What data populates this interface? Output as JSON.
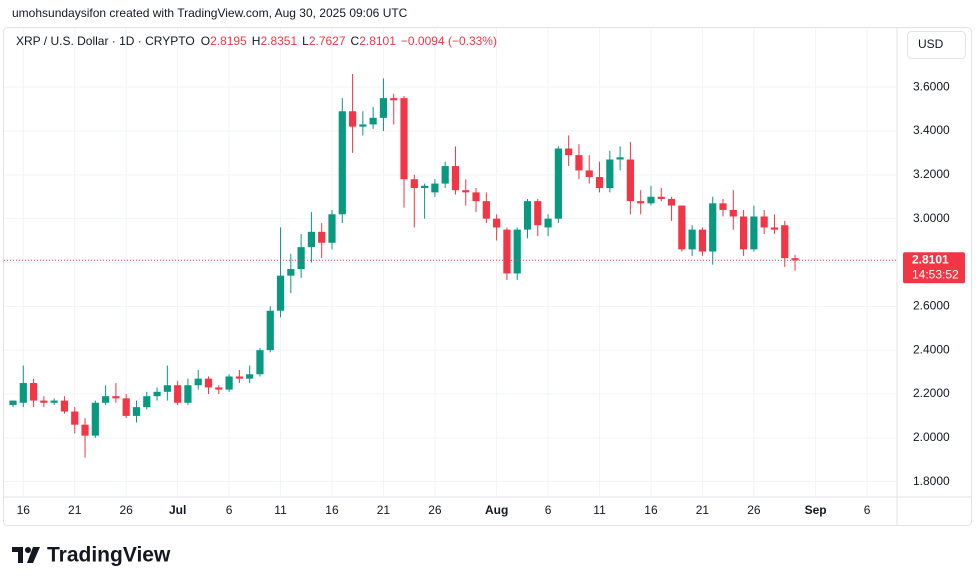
{
  "header": {
    "attribution": "umohsundaysifon created with TradingView.com, Aug 30, 2025 09:06 UTC"
  },
  "chart_data": {
    "type": "candlestick",
    "symbol": "XRP / U.S. Dollar · 1D · CRYPTO",
    "legend_labels": [
      "O",
      "H",
      "L",
      "C"
    ],
    "change_label": "−0.0094 (−0.33%)",
    "currency": "USD",
    "countdown": "14:53:52",
    "up_color": "#089981",
    "down_color": "#f23645",
    "grid": true,
    "categories": [
      null,
      "16",
      null,
      null,
      null,
      null,
      "21",
      null,
      null,
      null,
      null,
      "26",
      null,
      null,
      null,
      null,
      "Jul",
      null,
      null,
      null,
      null,
      "6",
      null,
      null,
      null,
      null,
      "11",
      null,
      null,
      null,
      null,
      "16",
      null,
      null,
      null,
      null,
      "21",
      null,
      null,
      null,
      null,
      "26",
      null,
      null,
      null,
      null,
      null,
      "Aug",
      null,
      null,
      null,
      null,
      "6",
      null,
      null,
      null,
      null,
      "11",
      null,
      null,
      null,
      null,
      "16",
      null,
      null,
      null,
      null,
      "21",
      null,
      null,
      null,
      null,
      "26",
      null,
      null,
      null,
      null,
      null,
      "Sep",
      null,
      null,
      null,
      null,
      "6",
      null
    ],
    "open": [
      2.15,
      2.16,
      2.25,
      2.17,
      2.16,
      2.17,
      2.12,
      2.06,
      2.01,
      2.16,
      2.19,
      2.18,
      2.1,
      2.14,
      2.19,
      2.21,
      2.24,
      2.16,
      2.24,
      2.27,
      2.23,
      2.22,
      2.28,
      2.27,
      2.29,
      2.4,
      2.58,
      2.74,
      2.77,
      2.87,
      2.94,
      2.89,
      3.02,
      3.49,
      3.42,
      3.43,
      3.46,
      3.55,
      3.55,
      3.18,
      3.14,
      3.12,
      3.16,
      3.24,
      3.13,
      3.12,
      3.08,
      3.0,
      2.95,
      2.75,
      2.95,
      3.08,
      2.96,
      3.0,
      3.32,
      3.29,
      3.22,
      3.19,
      3.14,
      3.27,
      3.27,
      3.08,
      3.07,
      3.1,
      3.09,
      3.06,
      2.86,
      2.95,
      2.85,
      3.07,
      3.04,
      3.01,
      2.86,
      3.01,
      2.96,
      2.97,
      2.8195,
      null,
      null,
      null,
      null,
      null,
      null,
      null,
      null
    ],
    "high": [
      2.17,
      2.33,
      2.27,
      2.19,
      2.18,
      2.19,
      2.14,
      2.09,
      2.17,
      2.24,
      2.25,
      2.2,
      2.17,
      2.21,
      2.23,
      2.33,
      2.26,
      2.27,
      2.31,
      2.28,
      2.24,
      2.29,
      2.31,
      2.33,
      2.41,
      2.6,
      2.96,
      2.84,
      2.93,
      3.03,
      2.98,
      3.04,
      3.55,
      3.66,
      3.49,
      3.51,
      3.64,
      3.57,
      3.56,
      3.2,
      3.16,
      3.18,
      3.26,
      3.33,
      3.18,
      3.14,
      3.12,
      3.02,
      2.96,
      2.96,
      3.09,
      3.09,
      3.02,
      3.33,
      3.38,
      3.34,
      3.29,
      3.26,
      3.31,
      3.33,
      3.35,
      3.13,
      3.15,
      3.14,
      3.1,
      3.06,
      2.97,
      2.96,
      3.1,
      3.09,
      3.13,
      3.04,
      3.06,
      3.04,
      3.02,
      2.99,
      2.8351,
      null,
      null,
      null,
      null,
      null,
      null,
      null,
      null
    ],
    "low": [
      2.14,
      2.14,
      2.14,
      2.14,
      2.15,
      2.11,
      2.02,
      1.91,
      2.0,
      2.15,
      2.16,
      2.09,
      2.07,
      2.13,
      2.17,
      2.17,
      2.15,
      2.15,
      2.22,
      2.2,
      2.2,
      2.21,
      2.25,
      2.25,
      2.28,
      2.39,
      2.55,
      2.66,
      2.73,
      2.8,
      2.82,
      2.86,
      2.98,
      3.3,
      3.38,
      3.41,
      3.4,
      3.43,
      3.05,
      2.96,
      3.0,
      3.1,
      3.14,
      3.11,
      3.06,
      3.03,
      2.98,
      2.9,
      2.72,
      2.72,
      2.91,
      2.92,
      2.92,
      2.98,
      3.24,
      3.18,
      3.16,
      3.12,
      3.12,
      3.22,
      3.02,
      3.02,
      3.06,
      3.08,
      2.99,
      2.85,
      2.83,
      2.83,
      2.79,
      3.01,
      2.95,
      2.83,
      2.85,
      2.93,
      2.93,
      2.78,
      2.7627,
      null,
      null,
      null,
      null,
      null,
      null,
      null,
      null
    ],
    "close": [
      2.17,
      2.25,
      2.17,
      2.16,
      2.17,
      2.12,
      2.06,
      2.01,
      2.16,
      2.19,
      2.18,
      2.1,
      2.14,
      2.19,
      2.21,
      2.24,
      2.16,
      2.24,
      2.27,
      2.23,
      2.22,
      2.28,
      2.27,
      2.29,
      2.4,
      2.58,
      2.74,
      2.77,
      2.87,
      2.94,
      2.89,
      3.02,
      3.49,
      3.42,
      3.43,
      3.46,
      3.55,
      3.54,
      3.18,
      3.14,
      3.15,
      3.16,
      3.24,
      3.13,
      3.12,
      3.08,
      3.0,
      2.96,
      2.75,
      2.95,
      3.08,
      2.97,
      3.0,
      3.32,
      3.29,
      3.22,
      3.19,
      3.14,
      3.27,
      3.28,
      3.08,
      3.07,
      3.1,
      3.09,
      3.06,
      2.86,
      2.95,
      2.85,
      3.07,
      3.04,
      3.01,
      2.86,
      3.01,
      2.96,
      2.95,
      2.82,
      2.8101,
      null,
      null,
      null,
      null,
      null,
      null,
      null,
      null
    ],
    "ylim": [
      1.73,
      3.87
    ],
    "yticks": [
      {
        "value": 1.8,
        "label": "1.8000"
      },
      {
        "value": 2.0,
        "label": "2.0000"
      },
      {
        "value": 2.2,
        "label": "2.2000"
      },
      {
        "value": 2.4,
        "label": "2.4000"
      },
      {
        "value": 2.6,
        "label": "2.6000"
      },
      {
        "value": 2.8,
        "label": "2.8000"
      },
      {
        "value": 3.0,
        "label": "3.0000"
      },
      {
        "value": 3.2,
        "label": "3.2000"
      },
      {
        "value": 3.4,
        "label": "3.4000"
      },
      {
        "value": 3.6,
        "label": "3.6000"
      }
    ]
  },
  "footer": {
    "brand": "TradingView"
  }
}
